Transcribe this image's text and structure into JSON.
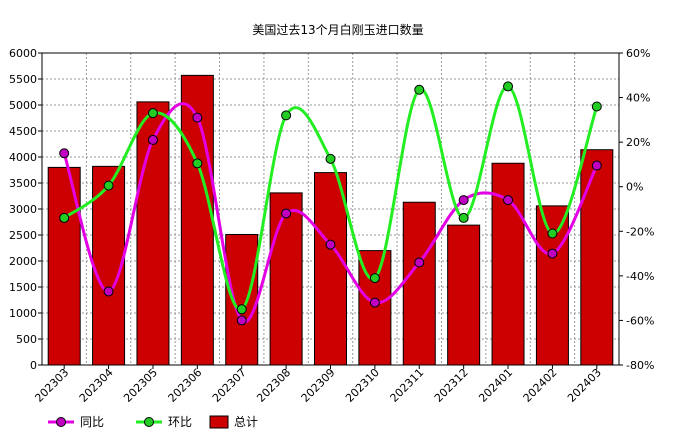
{
  "chart_data": {
    "type": "bar+line",
    "title": "美国过去13个月白刚玉进口数量",
    "categories": [
      "202303",
      "202304",
      "202305",
      "202306",
      "202307",
      "202308",
      "202309",
      "202310",
      "202311",
      "202312",
      "202401",
      "202402",
      "202403"
    ],
    "bar_series": {
      "name": "总计",
      "axis": "left",
      "color": "#cc0000",
      "values": [
        3800,
        3820,
        5060,
        5570,
        2510,
        3310,
        3700,
        2200,
        3130,
        2690,
        3880,
        3060,
        4140
      ]
    },
    "line_series": [
      {
        "name": "同比",
        "axis": "right",
        "color": "#e400e4",
        "marker": "#c000c0",
        "values": [
          15,
          -47,
          21,
          31,
          -60,
          -12,
          -26,
          -52,
          -34,
          -6,
          -6,
          -30,
          9.5
        ]
      },
      {
        "name": "环比",
        "axis": "right",
        "color": "#22ee22",
        "marker": "#22cc22",
        "values": [
          -14,
          0.5,
          33,
          10.5,
          -55,
          32,
          12.5,
          -41,
          43.5,
          -14,
          45,
          -21,
          36
        ]
      }
    ],
    "y_left": {
      "min": 0,
      "max": 6000,
      "step": 500,
      "ticks": [
        "0",
        "500",
        "1000",
        "1500",
        "2000",
        "2500",
        "3000",
        "3500",
        "4000",
        "4500",
        "5000",
        "5500",
        "6000"
      ]
    },
    "y_right": {
      "min": -80,
      "max": 60,
      "step": 20,
      "ticks": [
        "-80%",
        "-60%",
        "-40%",
        "-20%",
        "0%",
        "20%",
        "40%",
        "60%"
      ]
    },
    "grid": true,
    "legend": {
      "placement": "bottom-left",
      "items": [
        {
          "label": "同比",
          "kind": "line",
          "color": "#e400e4",
          "marker": "#c000c0"
        },
        {
          "label": "环比",
          "kind": "line",
          "color": "#22ee22",
          "marker": "#22cc22"
        },
        {
          "label": "总计",
          "kind": "bar",
          "color": "#cc0000"
        }
      ]
    }
  }
}
